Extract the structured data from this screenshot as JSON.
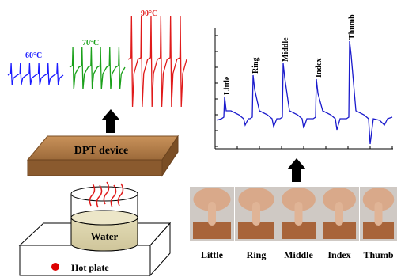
{
  "left_panel": {
    "temperatures": [
      "60°C",
      "70°C",
      "90°C"
    ],
    "device": "DPT device",
    "beaker": "Water",
    "heater": "Hot plate"
  },
  "right_panel": {
    "peak_labels": [
      "Little",
      "Ring",
      "Middle",
      "Index",
      "Thumb"
    ],
    "finger_labels": [
      "Little",
      "Ring",
      "Middle",
      "Index",
      "Thumb"
    ]
  }
}
